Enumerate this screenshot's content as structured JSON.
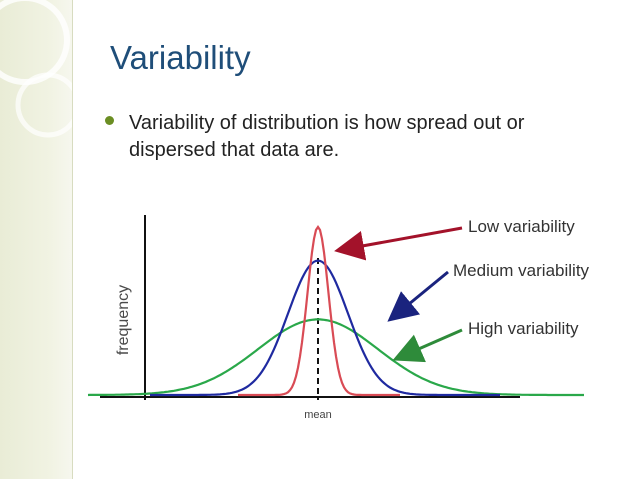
{
  "slide": {
    "title": "Variability",
    "bullet": "Variability of distribution is how spread out or dispersed that data are."
  },
  "figure": {
    "ylabel": "frequency",
    "xlabel": "mean",
    "labels": {
      "low": "Low variability",
      "medium": "Medium variability",
      "high": "High variability"
    },
    "colors": {
      "low": "#d94b55",
      "medium": "#1f2aa0",
      "high": "#2aa84a",
      "red_arrow": "#a3122a",
      "blue_arrow": "#1a237e",
      "green_arrow": "#2e8b3a",
      "accent": "#6b8e23",
      "title": "#1f4e79"
    },
    "curves": {
      "low": {
        "peak": 1.0,
        "spread": 0.35
      },
      "medium": {
        "peak": 0.8,
        "spread": 1.0
      },
      "high": {
        "peak": 0.45,
        "spread": 2.0
      }
    }
  }
}
